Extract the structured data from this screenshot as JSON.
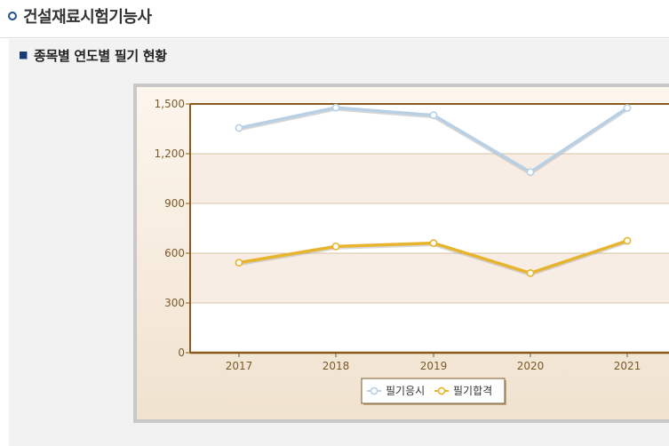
{
  "page": {
    "title": "건설재료시험기능사",
    "section_title": "종목별 연도별 필기 현황"
  },
  "chart_data": {
    "type": "line",
    "categories": [
      "2017",
      "2018",
      "2019",
      "2020",
      "2021"
    ],
    "series": [
      {
        "name": "필기응시",
        "values": [
          1355,
          1478,
          1432,
          1089,
          1476
        ],
        "color": "#b8d0e6"
      },
      {
        "name": "필기합격",
        "values": [
          543,
          641,
          661,
          480,
          675
        ],
        "color": "#e6b42d"
      }
    ],
    "ylim": [
      0,
      1500
    ],
    "yticks": [
      "0",
      "300",
      "600",
      "900",
      "1,200",
      "1,500"
    ],
    "grid": true,
    "legend_position": "bottom-center"
  }
}
